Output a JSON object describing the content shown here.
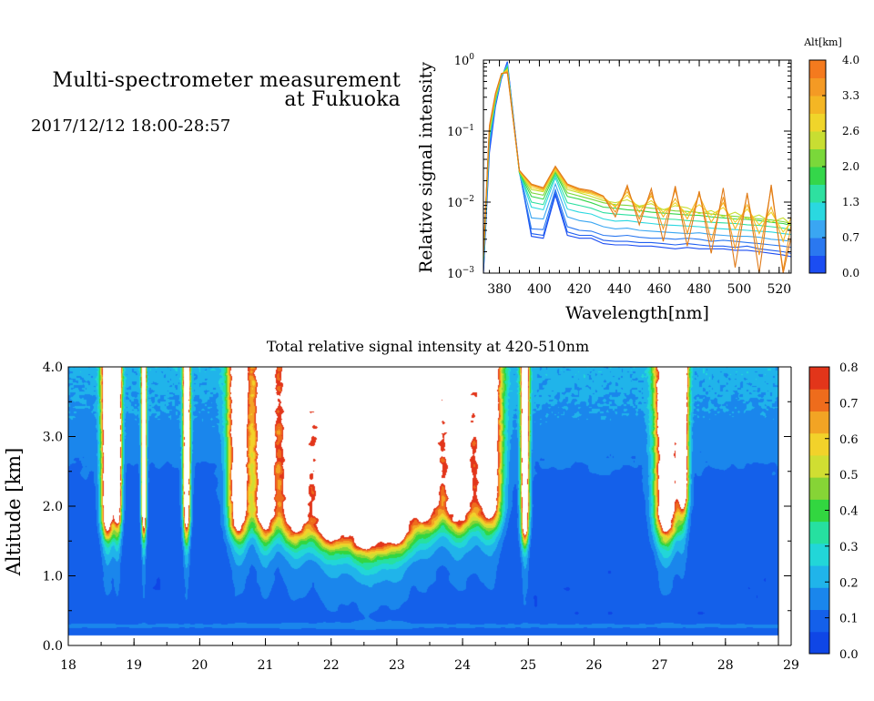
{
  "figure": {
    "title_line1": "Multi-spectrometer measurement",
    "title_line2": "at Fukuoka",
    "subtitle": "2017/12/12 18:00-28:57"
  },
  "chart_data": [
    {
      "type": "line",
      "title": "",
      "xlabel": "Wavelength[nm]",
      "ylabel": "Relative signal intensity",
      "xlim": [
        372,
        526
      ],
      "ylim": [
        0.001,
        1
      ],
      "yscale": "log",
      "xticks": [
        380,
        400,
        420,
        440,
        460,
        480,
        500,
        520
      ],
      "yticks": [
        {
          "value": 1,
          "base": "10",
          "exp": "0"
        },
        {
          "value": 0.1,
          "base": "10",
          "exp": "−1"
        },
        {
          "value": 0.01,
          "base": "10",
          "exp": "−2"
        },
        {
          "value": 0.001,
          "base": "10",
          "exp": "−3"
        }
      ],
      "grid": false,
      "colorbar": {
        "label": "Alt[km]",
        "tick_labels": [
          "4.0",
          "3.3",
          "2.6",
          "2.0",
          "1.3",
          "0.7",
          "0.0"
        ],
        "range": [
          0,
          4
        ],
        "colors": [
          "#1b4df2",
          "#2a78f0",
          "#3aa6f2",
          "#2ad8e0",
          "#2ee0a0",
          "#34d64a",
          "#7ad83a",
          "#c8de32",
          "#f0d52a",
          "#f4b624",
          "#f49a24",
          "#f47a1e"
        ]
      },
      "x": [
        372,
        375,
        378,
        381,
        384,
        390,
        396,
        402,
        408,
        414,
        420,
        426,
        432,
        438,
        444,
        450,
        456,
        462,
        468,
        474,
        480,
        486,
        492,
        498,
        504,
        510,
        516,
        522,
        526
      ],
      "series": [
        {
          "alt": 0.0,
          "color": "#1b4df2",
          "values": [
            0.001,
            0.05,
            0.22,
            0.55,
            0.95,
            0.028,
            0.0033,
            0.0031,
            0.0125,
            0.0034,
            0.0031,
            0.0031,
            0.0026,
            0.0025,
            0.0025,
            0.0024,
            0.0024,
            0.0023,
            0.0022,
            0.0023,
            0.0022,
            0.0022,
            0.0022,
            0.0021,
            0.0021,
            0.002,
            0.0019,
            0.0018,
            0.0017
          ]
        },
        {
          "alt": 0.35,
          "color": "#1f5ef0",
          "values": [
            0.001,
            0.06,
            0.23,
            0.56,
            0.9,
            0.027,
            0.0036,
            0.0034,
            0.0135,
            0.0038,
            0.0034,
            0.0034,
            0.0029,
            0.0028,
            0.0028,
            0.0027,
            0.0027,
            0.0026,
            0.0025,
            0.0026,
            0.0025,
            0.0024,
            0.0024,
            0.0023,
            0.0024,
            0.0022,
            0.0021,
            0.002,
            0.0019
          ]
        },
        {
          "alt": 0.7,
          "color": "#2a78f0",
          "values": [
            0.0012,
            0.065,
            0.24,
            0.57,
            0.88,
            0.026,
            0.0042,
            0.0041,
            0.015,
            0.0045,
            0.004,
            0.0039,
            0.0034,
            0.0033,
            0.0034,
            0.0032,
            0.0031,
            0.0031,
            0.003,
            0.0031,
            0.003,
            0.0028,
            0.0029,
            0.0028,
            0.0027,
            0.0026,
            0.0025,
            0.0024,
            0.0023
          ]
        },
        {
          "alt": 1.0,
          "color": "#3aa6f2",
          "values": [
            0.0013,
            0.07,
            0.25,
            0.58,
            0.85,
            0.026,
            0.006,
            0.0058,
            0.018,
            0.0062,
            0.0055,
            0.0052,
            0.0045,
            0.0042,
            0.0043,
            0.004,
            0.0039,
            0.0038,
            0.0037,
            0.0036,
            0.0037,
            0.0035,
            0.0034,
            0.0033,
            0.0033,
            0.0032,
            0.003,
            0.0029,
            0.0028
          ]
        },
        {
          "alt": 1.3,
          "color": "#2ad8e0",
          "values": [
            0.0014,
            0.08,
            0.26,
            0.6,
            0.82,
            0.026,
            0.0085,
            0.0078,
            0.022,
            0.008,
            0.0072,
            0.0068,
            0.0058,
            0.0054,
            0.0055,
            0.0052,
            0.005,
            0.0048,
            0.0047,
            0.0046,
            0.0045,
            0.0043,
            0.0042,
            0.0041,
            0.004,
            0.0039,
            0.0038,
            0.0036,
            0.0035
          ]
        },
        {
          "alt": 1.65,
          "color": "#2ee0a0",
          "values": [
            0.0015,
            0.085,
            0.27,
            0.6,
            0.8,
            0.026,
            0.01,
            0.0092,
            0.024,
            0.0098,
            0.009,
            0.0082,
            0.0071,
            0.0068,
            0.0066,
            0.0064,
            0.0061,
            0.0058,
            0.0057,
            0.0055,
            0.0054,
            0.0052,
            0.0051,
            0.005,
            0.0048,
            0.0047,
            0.0045,
            0.0043,
            0.0041
          ]
        },
        {
          "alt": 2.0,
          "color": "#34d64a",
          "values": [
            0.0016,
            0.09,
            0.28,
            0.62,
            0.78,
            0.026,
            0.012,
            0.011,
            0.026,
            0.012,
            0.011,
            0.0098,
            0.0085,
            0.0082,
            0.0078,
            0.0076,
            0.0072,
            0.007,
            0.0068,
            0.0066,
            0.0065,
            0.0062,
            0.006,
            0.0058,
            0.0057,
            0.0055,
            0.0052,
            0.005,
            0.0047
          ]
        },
        {
          "alt": 2.3,
          "color": "#7ad83a",
          "values": [
            0.0016,
            0.095,
            0.29,
            0.62,
            0.76,
            0.027,
            0.0135,
            0.0125,
            0.027,
            0.0135,
            0.0122,
            0.011,
            0.0098,
            0.0092,
            0.009,
            0.0086,
            0.0082,
            0.0079,
            0.0075,
            0.0074,
            0.0071,
            0.0068,
            0.0065,
            0.0063,
            0.0061,
            0.0058,
            0.0056,
            0.0053,
            0.005
          ]
        },
        {
          "alt": 2.6,
          "color": "#c8de32",
          "values": [
            0.0017,
            0.1,
            0.3,
            0.63,
            0.74,
            0.027,
            0.015,
            0.014,
            0.028,
            0.015,
            0.0135,
            0.012,
            0.0105,
            0.0098,
            0.0108,
            0.0088,
            0.0095,
            0.0078,
            0.0089,
            0.0083,
            0.0069,
            0.0076,
            0.0062,
            0.0072,
            0.0058,
            0.0066,
            0.0052,
            0.006,
            0.0048
          ]
        },
        {
          "alt": 3.0,
          "color": "#f0d52a",
          "values": [
            0.0017,
            0.105,
            0.31,
            0.63,
            0.72,
            0.027,
            0.016,
            0.0145,
            0.029,
            0.016,
            0.014,
            0.013,
            0.0112,
            0.0088,
            0.0125,
            0.0082,
            0.0105,
            0.0072,
            0.0098,
            0.0068,
            0.0092,
            0.0066,
            0.0084,
            0.0052,
            0.008,
            0.0048,
            0.0072,
            0.0038,
            0.0052
          ]
        },
        {
          "alt": 3.3,
          "color": "#f4b624",
          "values": [
            0.0018,
            0.11,
            0.32,
            0.64,
            0.7,
            0.027,
            0.017,
            0.015,
            0.03,
            0.017,
            0.0145,
            0.0135,
            0.0118,
            0.0085,
            0.014,
            0.0072,
            0.0122,
            0.0062,
            0.0112,
            0.0058,
            0.0125,
            0.0052,
            0.0098,
            0.0042,
            0.0092,
            0.0036,
            0.0085,
            0.0028,
            0.0062
          ]
        },
        {
          "alt": 3.65,
          "color": "#f49a24",
          "values": [
            0.0018,
            0.115,
            0.33,
            0.64,
            0.68,
            0.028,
            0.0175,
            0.0155,
            0.031,
            0.0175,
            0.015,
            0.014,
            0.012,
            0.0072,
            0.0158,
            0.0058,
            0.0135,
            0.0042,
            0.0148,
            0.0036,
            0.0138,
            0.0028,
            0.0118,
            0.0022,
            0.0128,
            0.0018,
            0.0158,
            0.0011,
            0.0048
          ]
        },
        {
          "alt": 4.0,
          "color": "#e07a18",
          "values": [
            0.0019,
            0.12,
            0.34,
            0.65,
            0.66,
            0.028,
            0.018,
            0.016,
            0.032,
            0.018,
            0.0155,
            0.0145,
            0.0122,
            0.0062,
            0.0172,
            0.0048,
            0.0155,
            0.0028,
            0.0168,
            0.0024,
            0.0142,
            0.0019,
            0.0158,
            0.0012,
            0.0135,
            0.001,
            0.0175,
            0.001,
            0.0032
          ]
        }
      ]
    },
    {
      "type": "heatmap",
      "title": "Total relative signal intensity at 420-510nm",
      "xlabel": "",
      "ylabel": "Altitude [km]",
      "xlim": [
        18,
        29
      ],
      "ylim": [
        0,
        4
      ],
      "xticks": [
        18,
        19,
        20,
        21,
        22,
        23,
        24,
        25,
        26,
        27,
        28,
        29
      ],
      "yticks": [
        "0.0",
        "1.0",
        "2.0",
        "3.0",
        "4.0"
      ],
      "data_time_range": [
        18.0,
        28.95
      ],
      "data_alt_range": [
        0.15,
        4.0
      ],
      "grid": false,
      "colorbar": {
        "range": [
          0,
          0.8
        ],
        "tick_labels": [
          "0.8",
          "0.7",
          "0.6",
          "0.5",
          "0.4",
          "0.3",
          "0.2",
          "0.1",
          "0.0"
        ],
        "saturated_color": "#ffffff",
        "colors": [
          "#0f46e6",
          "#1460ea",
          "#1a86ec",
          "#20b4ea",
          "#22d6d8",
          "#26e0a0",
          "#32d640",
          "#86d436",
          "#d0de32",
          "#f2d22a",
          "#f2a424",
          "#ee6c1c",
          "#e2351a"
        ]
      },
      "cloud_columns": [
        {
          "time": 18.6,
          "base": 1.65,
          "width": 0.09
        },
        {
          "time": 18.75,
          "base": 1.75,
          "width": 0.06
        },
        {
          "time": 19.15,
          "base": 1.65,
          "width": 0.035
        },
        {
          "time": 19.8,
          "base": 1.65,
          "width": 0.05
        },
        {
          "time": 20.6,
          "base": 1.65,
          "width": 0.15
        },
        {
          "time": 21.0,
          "base": 1.65,
          "width": 0.16
        },
        {
          "time": 21.45,
          "base": 1.62,
          "width": 0.22
        },
        {
          "time": 22.0,
          "base": 1.5,
          "width": 0.28
        },
        {
          "time": 22.55,
          "base": 1.38,
          "width": 0.28
        },
        {
          "time": 23.0,
          "base": 1.48,
          "width": 0.24
        },
        {
          "time": 23.45,
          "base": 1.78,
          "width": 0.22
        },
        {
          "time": 23.95,
          "base": 1.75,
          "width": 0.22
        },
        {
          "time": 24.4,
          "base": 1.8,
          "width": 0.18
        },
        {
          "time": 24.95,
          "base": 1.6,
          "width": 0.06
        },
        {
          "time": 27.1,
          "base": 1.62,
          "width": 0.16
        },
        {
          "time": 27.35,
          "base": 2.0,
          "width": 0.08
        }
      ],
      "near_surface_band_alt": 0.28
    }
  ]
}
